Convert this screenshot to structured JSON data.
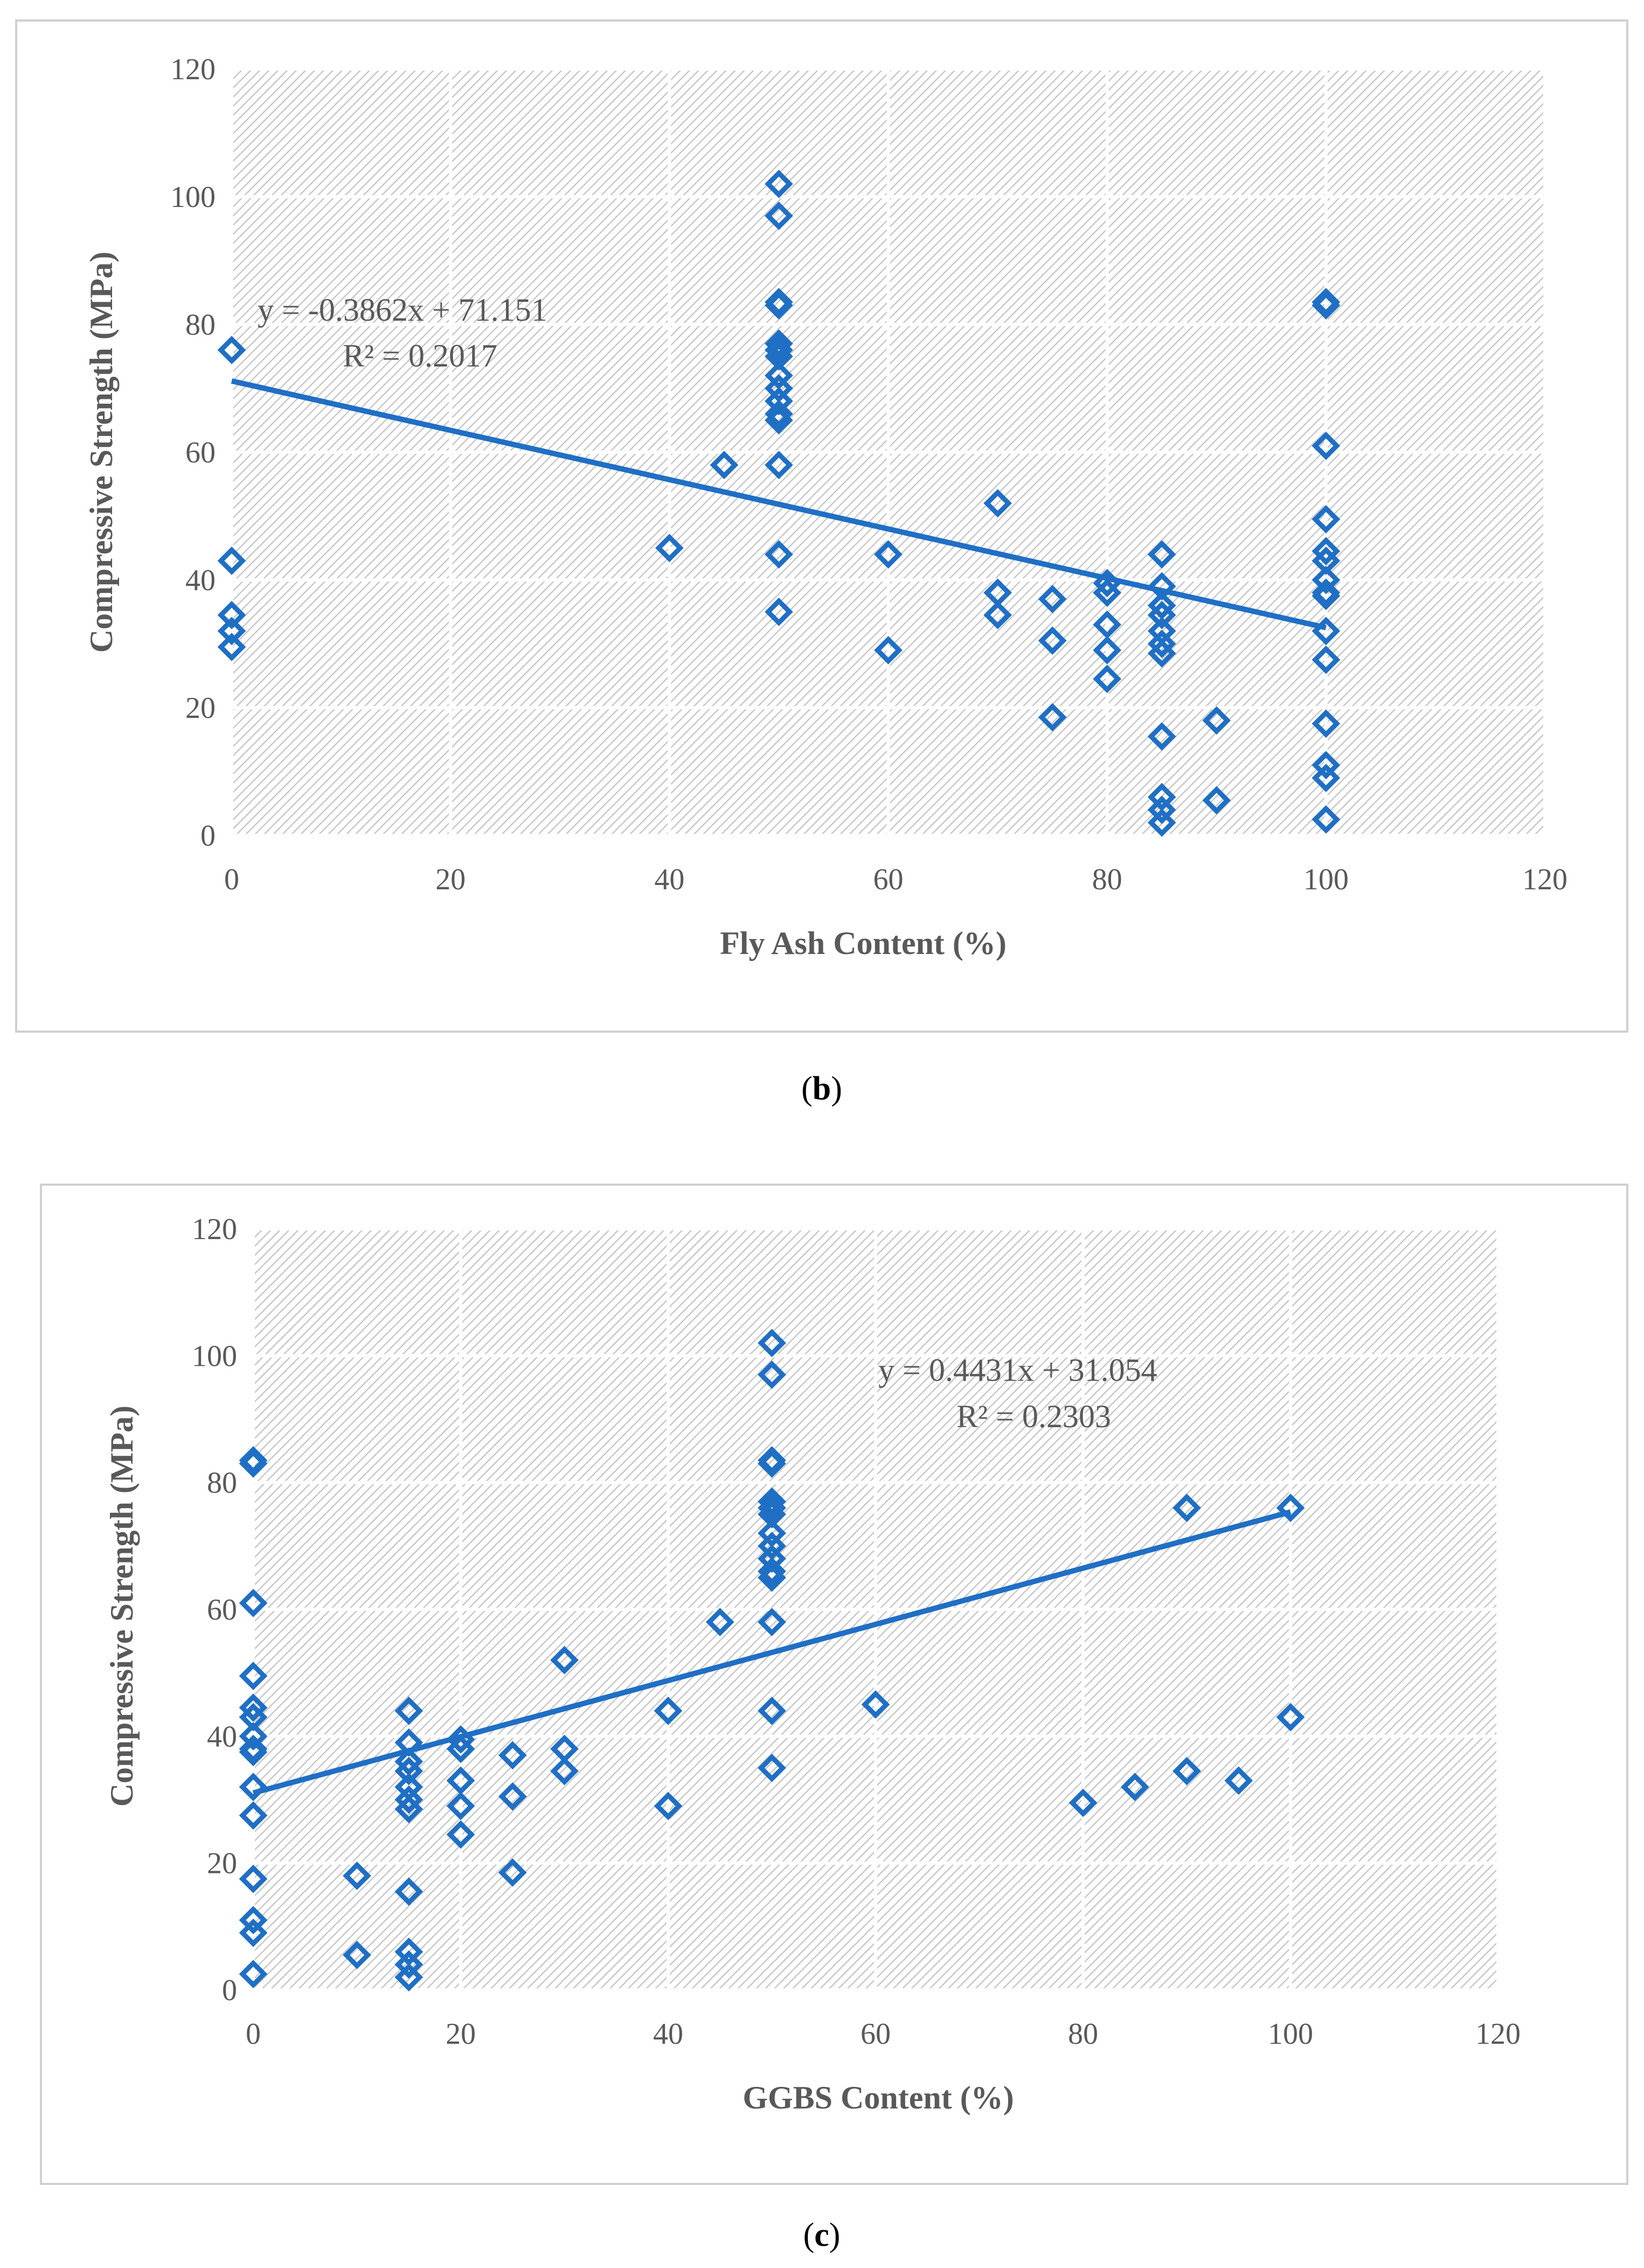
{
  "colors": {
    "series": "#1f6fc5",
    "plot_bg": "#d6d6d6"
  },
  "chart_data": [
    {
      "type": "scatter",
      "panel_label": "b",
      "xlabel": "Fly Ash Content (%)",
      "ylabel": "Compressive Strength (MPa)",
      "xlim": [
        0,
        120
      ],
      "ylim": [
        0,
        120
      ],
      "xticks": [
        "0",
        "20",
        "40",
        "60",
        "80",
        "100",
        "120"
      ],
      "yticks": [
        "0",
        "20",
        "40",
        "60",
        "80",
        "100",
        "120"
      ],
      "grid": true,
      "series": [
        {
          "name": "Compressive Strength",
          "marker": "diamond",
          "points": [
            [
              0,
              76
            ],
            [
              0,
              43
            ],
            [
              0,
              34.5
            ],
            [
              0,
              32
            ],
            [
              0,
              29.5
            ],
            [
              40,
              45
            ],
            [
              45,
              58
            ],
            [
              50,
              102
            ],
            [
              50,
              97
            ],
            [
              50,
              83.5
            ],
            [
              50,
              83
            ],
            [
              50,
              77
            ],
            [
              50,
              76
            ],
            [
              50,
              75
            ],
            [
              50,
              72
            ],
            [
              50,
              70
            ],
            [
              50,
              68
            ],
            [
              50,
              66
            ],
            [
              50,
              65
            ],
            [
              50,
              58
            ],
            [
              50,
              44
            ],
            [
              50,
              35
            ],
            [
              60,
              44
            ],
            [
              60,
              29
            ],
            [
              70,
              52
            ],
            [
              70,
              38
            ],
            [
              70,
              34.5
            ],
            [
              75,
              37
            ],
            [
              75,
              30.5
            ],
            [
              75,
              18.5
            ],
            [
              80,
              39.5
            ],
            [
              80,
              38
            ],
            [
              80,
              33
            ],
            [
              80,
              29
            ],
            [
              80,
              24.5
            ],
            [
              85,
              44
            ],
            [
              85,
              39
            ],
            [
              85,
              36
            ],
            [
              85,
              34.5
            ],
            [
              85,
              32
            ],
            [
              85,
              30
            ],
            [
              85,
              28.5
            ],
            [
              85,
              15.5
            ],
            [
              85,
              6
            ],
            [
              85,
              4
            ],
            [
              85,
              2
            ],
            [
              90,
              18
            ],
            [
              90,
              5.5
            ],
            [
              100,
              83.5
            ],
            [
              100,
              83
            ],
            [
              100,
              61
            ],
            [
              100,
              49.5
            ],
            [
              100,
              44.5
            ],
            [
              100,
              43
            ],
            [
              100,
              40
            ],
            [
              100,
              38
            ],
            [
              100,
              37.5
            ],
            [
              100,
              32
            ],
            [
              100,
              27.5
            ],
            [
              100,
              17.5
            ],
            [
              100,
              11
            ],
            [
              100,
              9
            ],
            [
              100,
              2.5
            ]
          ]
        }
      ],
      "trendline": {
        "slope": -0.3862,
        "intercept": 71.151,
        "x_range": [
          0,
          100
        ]
      },
      "annotation": {
        "equation": "y = -0.3862x + 71.151",
        "r2": "R² = 0.2017"
      }
    },
    {
      "type": "scatter",
      "panel_label": "c",
      "xlabel": "GGBS Content (%)",
      "ylabel": "Compressive Strength (MPa)",
      "xlim": [
        0,
        120
      ],
      "ylim": [
        0,
        120
      ],
      "xticks": [
        "0",
        "20",
        "40",
        "60",
        "80",
        "100",
        "120"
      ],
      "yticks": [
        "0",
        "20",
        "40",
        "60",
        "80",
        "100",
        "120"
      ],
      "grid": true,
      "series": [
        {
          "name": "Compressive Strength",
          "marker": "diamond",
          "points": [
            [
              0,
              83.5
            ],
            [
              0,
              83
            ],
            [
              0,
              61
            ],
            [
              0,
              49.5
            ],
            [
              0,
              44.5
            ],
            [
              0,
              43
            ],
            [
              0,
              40
            ],
            [
              0,
              38
            ],
            [
              0,
              37.5
            ],
            [
              0,
              32
            ],
            [
              0,
              27.5
            ],
            [
              0,
              17.5
            ],
            [
              0,
              11
            ],
            [
              0,
              9
            ],
            [
              0,
              2.5
            ],
            [
              10,
              18
            ],
            [
              10,
              5.5
            ],
            [
              15,
              44
            ],
            [
              15,
              39
            ],
            [
              15,
              36
            ],
            [
              15,
              34.5
            ],
            [
              15,
              32
            ],
            [
              15,
              30
            ],
            [
              15,
              28.5
            ],
            [
              15,
              15.5
            ],
            [
              15,
              6
            ],
            [
              15,
              4
            ],
            [
              15,
              2
            ],
            [
              20,
              39.5
            ],
            [
              20,
              38
            ],
            [
              20,
              33
            ],
            [
              20,
              29
            ],
            [
              20,
              24.5
            ],
            [
              25,
              37
            ],
            [
              25,
              30.5
            ],
            [
              25,
              18.5
            ],
            [
              30,
              52
            ],
            [
              30,
              38
            ],
            [
              30,
              34.5
            ],
            [
              40,
              44
            ],
            [
              40,
              29
            ],
            [
              45,
              58
            ],
            [
              50,
              102
            ],
            [
              50,
              97
            ],
            [
              50,
              83.5
            ],
            [
              50,
              83
            ],
            [
              50,
              77
            ],
            [
              50,
              76
            ],
            [
              50,
              75
            ],
            [
              50,
              72
            ],
            [
              50,
              70
            ],
            [
              50,
              68
            ],
            [
              50,
              66
            ],
            [
              50,
              65
            ],
            [
              50,
              58
            ],
            [
              50,
              44
            ],
            [
              50,
              35
            ],
            [
              60,
              45
            ],
            [
              80,
              29.5
            ],
            [
              85,
              32
            ],
            [
              90,
              76
            ],
            [
              90,
              34.5
            ],
            [
              95,
              33
            ],
            [
              100,
              76
            ],
            [
              100,
              43
            ]
          ]
        }
      ],
      "trendline": {
        "slope": 0.4431,
        "intercept": 31.054,
        "x_range": [
          0,
          100
        ]
      },
      "annotation": {
        "equation": "y = 0.4431x + 31.054",
        "r2": "R² = 0.2303"
      }
    }
  ]
}
